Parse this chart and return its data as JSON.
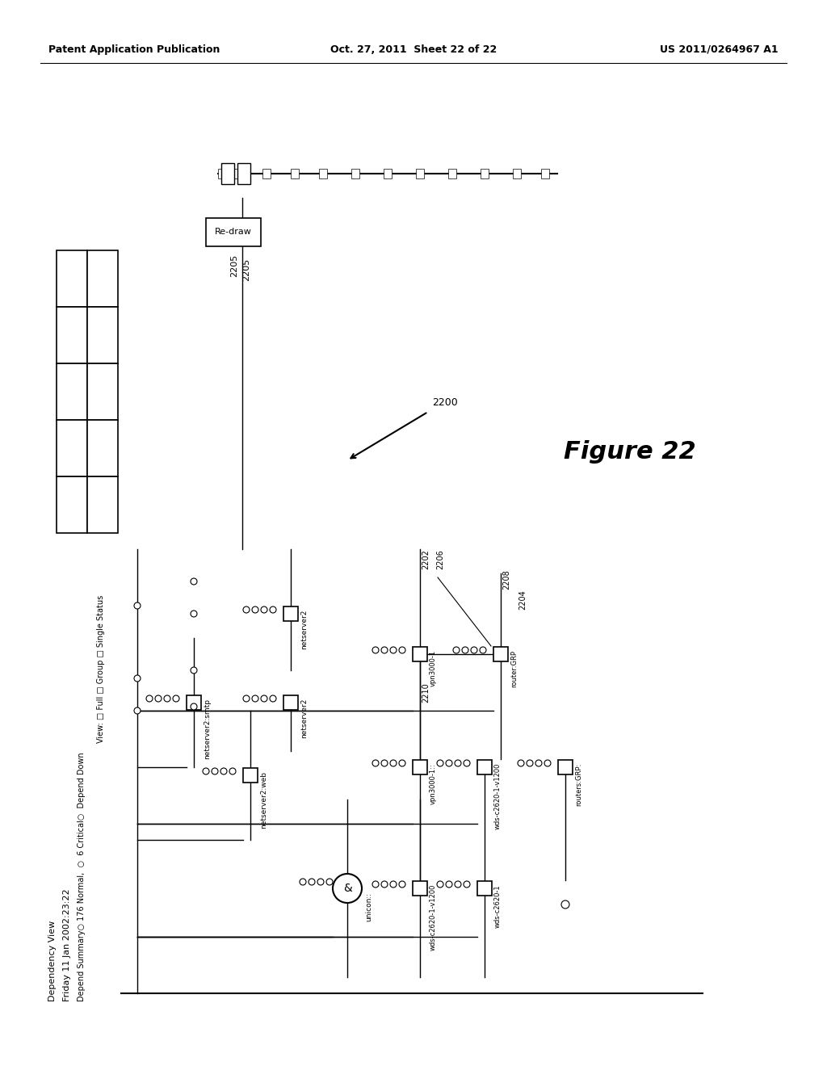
{
  "header_left": "Patent Application Publication",
  "header_mid": "Oct. 27, 2011  Sheet 22 of 22",
  "header_right": "US 2011/0264967 A1",
  "figure_label": "Figure 22",
  "figure_number": "2200",
  "bg_color": "#ffffff",
  "text_color": "#000000",
  "title1": "Dependency View",
  "title2": "Friday 11 Jan 2002:23:22",
  "depend_summary": "Depend Summary○ 176 Normal,  ○  6 Critical○  Depend Down",
  "view_line": "View: □ Full □ Group □ Single Status",
  "redraw_label": "Re-draw",
  "label_2205": "2205",
  "label_2202": "2202",
  "label_2206": "2206",
  "label_2208": "2208",
  "label_2204": "2204",
  "label_2210": "2210"
}
